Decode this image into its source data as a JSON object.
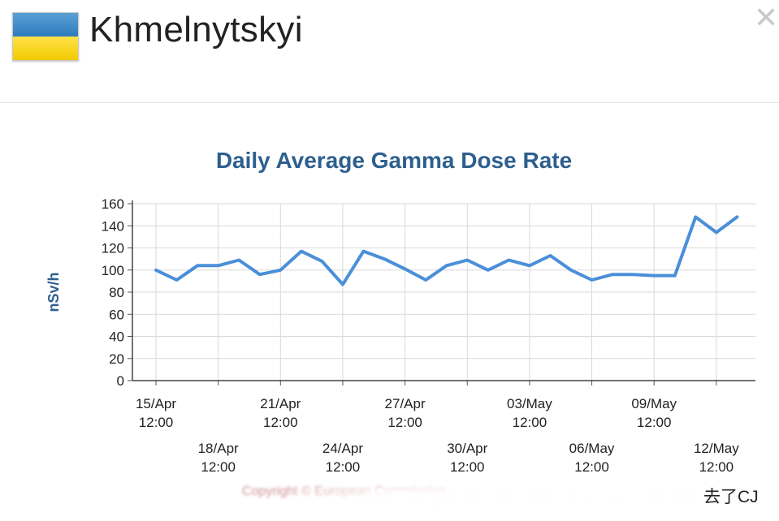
{
  "header": {
    "city": "Khmelnytskyi",
    "flag_colors": {
      "top": "#3d86c6",
      "bottom": "#f5d000"
    },
    "close_icon": "close-icon"
  },
  "chart_data": {
    "type": "line",
    "title": "Daily Average Gamma Dose Rate",
    "xlabel": "",
    "ylabel": "nSv/h",
    "ylim": [
      0,
      160
    ],
    "yticks": [
      0,
      20,
      40,
      60,
      80,
      100,
      120,
      140,
      160
    ],
    "grid": true,
    "x_tick_labels": [
      {
        "day": 0,
        "date": "15/Apr",
        "time": "12:00",
        "row": 1
      },
      {
        "day": 3,
        "date": "18/Apr",
        "time": "12:00",
        "row": 2
      },
      {
        "day": 6,
        "date": "21/Apr",
        "time": "12:00",
        "row": 1
      },
      {
        "day": 9,
        "date": "24/Apr",
        "time": "12:00",
        "row": 2
      },
      {
        "day": 12,
        "date": "27/Apr",
        "time": "12:00",
        "row": 1
      },
      {
        "day": 15,
        "date": "30/Apr",
        "time": "12:00",
        "row": 2
      },
      {
        "day": 18,
        "date": "03/May",
        "time": "12:00",
        "row": 1
      },
      {
        "day": 21,
        "date": "06/May",
        "time": "12:00",
        "row": 2
      },
      {
        "day": 24,
        "date": "09/May",
        "time": "12:00",
        "row": 1
      },
      {
        "day": 27,
        "date": "12/May",
        "time": "12:00",
        "row": 2
      }
    ],
    "series": [
      {
        "color": "#4a8fd9",
        "values": [
          100,
          91,
          104,
          104,
          109,
          96,
          100,
          117,
          108,
          87,
          117,
          110,
          101,
          91,
          104,
          109,
          100,
          109,
          104,
          113,
          100,
          91,
          96,
          96,
          95,
          95,
          148,
          134,
          148
        ]
      }
    ]
  },
  "footer": {
    "copyright": "Copyright © European Commission",
    "watermark": "去了CJ"
  }
}
